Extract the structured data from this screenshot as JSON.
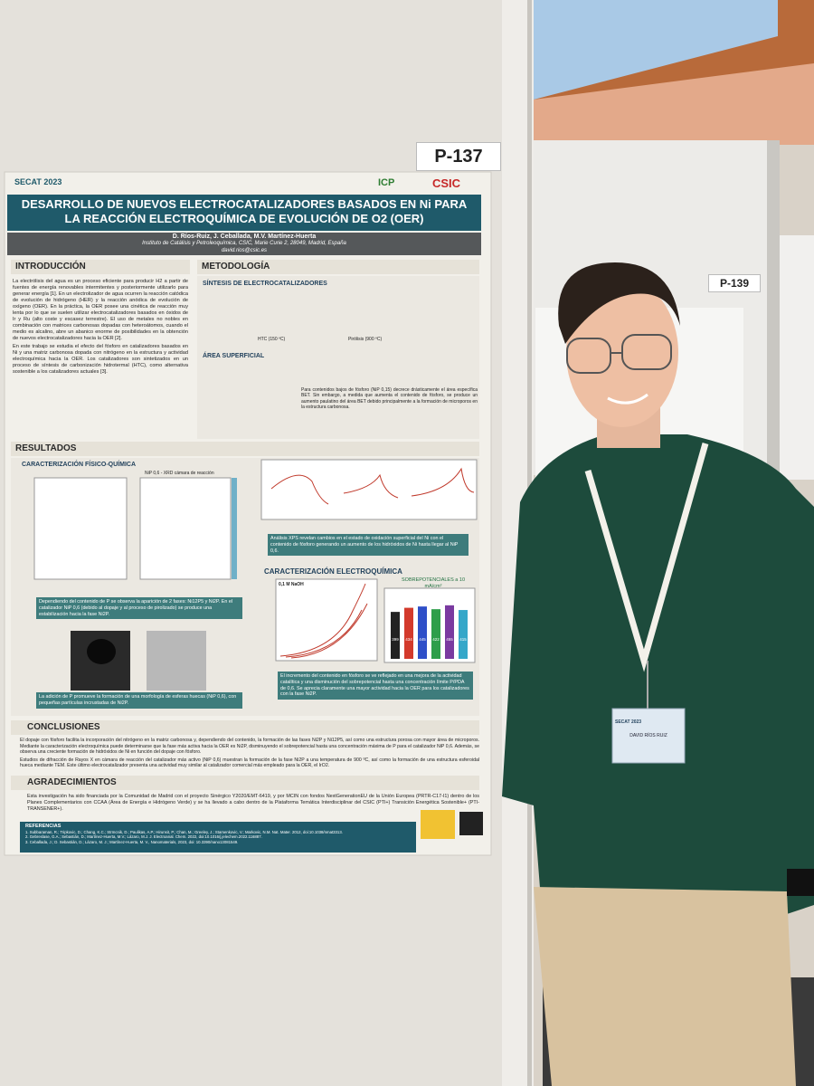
{
  "board_labels": {
    "left": "P-137",
    "right": "P-139"
  },
  "poster": {
    "conference": "SECAT 2023",
    "logos": [
      "ICP",
      "CSIC"
    ],
    "title": "DESARROLLO DE NUEVOS ELECTROCATALIZADORES BASADOS EN Ni PARA LA REACCIÓN ELECTROQUÍMICA DE EVOLUCIÓN DE O2 (OER)",
    "authors": "D. Ríos-Ruiz, J. Ceballada, M.V. Martínez-Huerta",
    "affiliation": "Instituto de Catálisis y Petroleoquímica, CSIC, Marie Curie 2, 28049, Madrid, España",
    "email": "david.rios@csic.es",
    "introduction": {
      "heading": "INTRODUCCIÓN",
      "paragraphs": [
        "La electrólisis del agua es un proceso eficiente para producir H2 a partir de fuentes de energía renovables intermitentes y posteriormente utilizarlo para generar energía [1]. En un electrolizador de agua ocurren la reacción catódica de evolución de hidrógeno (HER) y la reacción anódica de evolución de oxígeno (OER). En la práctica, la OER posee una cinética de reacción muy lenta por lo que se suelen utilizar electrocatalizadores basados en óxidos de Ir y Ru (alto coste y escasez terrestre). El uso de metales no nobles en combinación con matrices carbonosas dopadas con heteroátomos, cuando el medio es alcalino, abre un abanico enorme de posibilidades en la obtención de nuevos electrocatalizadores hacia la OER [2].",
        "En este trabajo se estudia el efecto del fósforo en catalizadores basados en Ni y una matriz carbonosa dopada con nitrógeno en la estructura y actividad electroquímica hacia la OER. Los catalizadores son sintetizados en un proceso de síntesis de carbonización hidrotermal (HTC), como alternativa sostenible a los catalizadores actuales [3]."
      ]
    },
    "methodology": {
      "heading": "METODOLOGÍA",
      "synthesis": "SÍNTESIS DE ELECTROCATALIZADORES",
      "steps": [
        "HTC (150 ºC)",
        "Pirólisis (900 ºC)"
      ],
      "surface": "ÁREA SUPERFICIAL",
      "surface_note": "Para contenidos bajos de fósforo (NiP 0,15) decrece drásticamente el área específica BET. Sin embargo, a medida que aumenta el contenido de fósforo, se produce un aumento paulatino del área BET debido principalmente a la formación de microporos en la estructura carbonosa."
    },
    "results": {
      "heading": "RESULTADOS",
      "physchem": "CARACTERIZACIÓN FÍSICO-QUÍMICA",
      "xrd": "NiP 0,6 - XRD cámara de reacción",
      "xrd_note": "Dependiendo del contenido de P se observa la aparición de 2 fases: Ni12P5 y Ni2P. En el catalizador NiP 0,6 (debido al dopaje y al proceso de pirolizado) se produce una estabilización hacia la fase Ni2P.",
      "tem_note": "La adición de P promueve la formación de una morfología de esferas huecas (NiP 0,6), con pequeñas partículas incrustadas de Ni2P.",
      "xps_note": "Análisis XPS revelan cambios en el estado de oxidación superficial del Ni con el contenido de fósforo generando un aumento de los hidróxidos de Ni hasta llegar al NiP 0,6.",
      "electrochem": "CARACTERIZACIÓN ELECTROQUÍMICA",
      "electrolyte": "0,1 M NaOH",
      "overpotential_title": "SOBREPOTENCIALES a 10 mA/cm²",
      "overpotential_values": [
        399,
        434,
        445,
        422,
        455,
        415
      ],
      "overpotential_colors": [
        "#222222",
        "#d33a2c",
        "#2f4fc8",
        "#2e9e4a",
        "#7a3aa0",
        "#35a7c9"
      ],
      "electrochem_note": "El incremento del contenido en fósforo se ve reflejado en una mejora de la actividad catalítica y una disminución del sobrepotencial hasta una concentración límite P/PDA de 0,6. Se aprecia claramente una mayor actividad hacia la OER para los catalizadores con la fase Ni2P."
    },
    "conclusions": {
      "heading": "CONCLUSIONES",
      "items": [
        "El dopaje con fósforo facilita la incorporación del nitrógeno en la matriz carbonosa y, dependiendo del contenido, la formación de las fases Ni2P y Ni12P5, así como una estructura porosa con mayor área de microporos. Mediante la caracterización electroquímica puede determinarse que la fase más activa hacia la OER es Ni2P, disminuyendo el sobrepotencial hasta una concentración máxima de P para el catalizador NiP 0,6. Además, se observa una creciente formación de hidróxidos de Ni en función del dopaje con fósforo.",
        "Estudios de difracción de Rayos X en cámara de reacción del catalizador más activo (NiP 0,6) muestran la formación de la fase Ni2P a una temperatura de 900 ºC, así como la formación de una estructura esferoidal hueca mediante TEM. Este último electrocatalizador presenta una actividad muy similar al catalizador comercial más empleado para la OER, el IrO2."
      ]
    },
    "acknowledgements": {
      "heading": "AGRADECIMIENTOS",
      "text": "Esta investigación ha sido financiada por la Comunidad de Madrid con el proyecto Sinérgico Y2020/EMT-6419, y por MCIN con fondos NextGenerationEU de la Unión Europea (PRTR-C17-I1) dentro de los Planes Complementarios con CCAA (Área de Energía e Hidrógeno Verde) y se ha llevado a cabo dentro de la Plataforma Temática Interdisciplinar del CSIC (PTI+) Transición Energética Sostenible+ (PTI-TRANSENER+)."
    },
    "references": {
      "heading": "REFERENCIAS",
      "items": [
        "1. Subbaraman, R.; Tripkovic, D.; Chang, K.C.; Strmcnik, D.; Paulikas, A.P.; Hirunsit, P.; Chan, M.; Greeley, J.; Stamenkovic, V.; Markovic, N.M. Nat. Mater. 2012, doi:10.1038/nmat3313.",
        "2. Gebreslase, G.A.; Sebastián, D.; Martínez-Huerta, M.V.; Lázaro, M.J. J. Electroanal. Chem. 2022, doi:10.1016/j.jelechem.2022.116887.",
        "3. Ceballada, J.; D. Sebastián, D.; Lázaro, M. J.; Martínez-Huerta, M. V., Nanomaterials, 2023, doi: 10.3390/nano13081549."
      ]
    }
  },
  "badge": {
    "event": "SECAT 2023",
    "name": "DAVID RÍOS RUIZ"
  }
}
